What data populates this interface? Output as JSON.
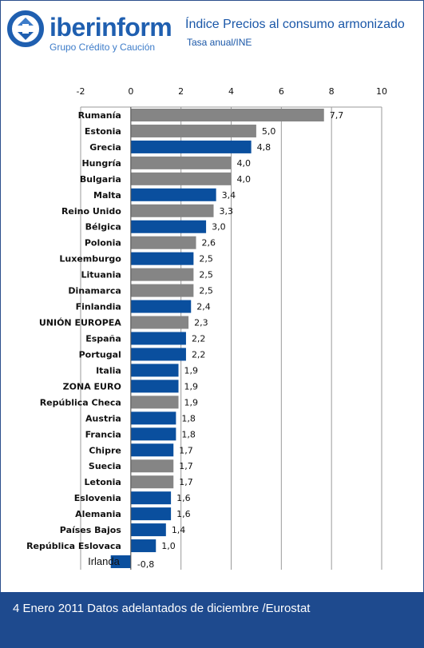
{
  "header": {
    "brand": "iberinform",
    "brand_sub": "Grupo Crédito y Caución",
    "title": "Índice Precios al consumo armonizado",
    "subtitle": "Tasa anual/INE"
  },
  "footer": {
    "text": "4 Enero 2011 Datos adelantados de diciembre /Eurostat"
  },
  "colors": {
    "blue": "#0a4f9e",
    "gray": "#858585",
    "footer": "#1e4a8e",
    "brand": "#1f5fb0"
  },
  "chart_data": {
    "type": "bar",
    "orientation": "horizontal",
    "xlim": [
      -2,
      10
    ],
    "xticks": [
      "-2",
      "0",
      "2",
      "4",
      "6",
      "8",
      "10"
    ],
    "grid": true,
    "categories": [
      "Rumanía",
      "Estonia",
      "Grecia",
      "Hungría",
      "Bulgaria",
      "Malta",
      "Reino Unido",
      "Bélgica",
      "Polonia",
      "Luxemburgo",
      "Lituania",
      "Dinamarca",
      "Finlandia",
      "UNIÓN EUROPEA",
      "España",
      "Portugal",
      "Italia",
      "ZONA EURO",
      "República Checa",
      "Austria",
      "Francia",
      "Chipre",
      "Suecia",
      "Letonia",
      "Eslovenia",
      "Alemania",
      "Países Bajos",
      "República Eslovaca",
      "Irlanda"
    ],
    "values": [
      7.7,
      5.0,
      4.8,
      4.0,
      4.0,
      3.4,
      3.3,
      3.0,
      2.6,
      2.5,
      2.5,
      2.5,
      2.4,
      2.3,
      2.2,
      2.2,
      1.9,
      1.9,
      1.9,
      1.8,
      1.8,
      1.7,
      1.7,
      1.7,
      1.6,
      1.6,
      1.4,
      1.0,
      -0.8
    ],
    "value_labels": [
      "7,7",
      "5,0",
      "4,8",
      "4,0",
      "4,0",
      "3,4",
      "3,3",
      "3,0",
      "2,6",
      "2,5",
      "2,5",
      "2,5",
      "2,4",
      "2,3",
      "2,2",
      "2,2",
      "1,9",
      "1,9",
      "1,9",
      "1,8",
      "1,8",
      "1,7",
      "1,7",
      "1,7",
      "1,6",
      "1,6",
      "1,4",
      "1,0",
      "-0,8"
    ],
    "bar_colors": [
      "gray",
      "gray",
      "blue",
      "gray",
      "gray",
      "blue",
      "gray",
      "blue",
      "gray",
      "blue",
      "gray",
      "gray",
      "blue",
      "gray",
      "blue",
      "blue",
      "blue",
      "blue",
      "gray",
      "blue",
      "blue",
      "blue",
      "gray",
      "gray",
      "blue",
      "blue",
      "blue",
      "blue",
      "blue"
    ]
  }
}
